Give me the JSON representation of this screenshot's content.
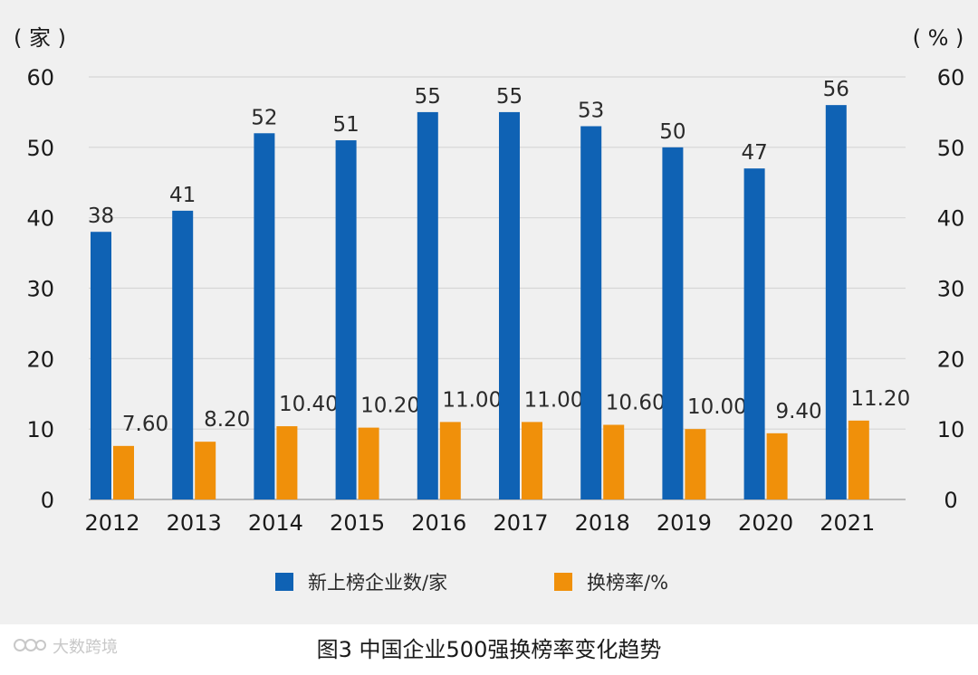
{
  "chart_data": {
    "type": "bar",
    "categories": [
      "2012",
      "2013",
      "2014",
      "2015",
      "2016",
      "2017",
      "2018",
      "2019",
      "2020",
      "2021"
    ],
    "series": [
      {
        "name": "新上榜企业数/家",
        "axis": "left",
        "color": "#0f62b4",
        "values": [
          38,
          41,
          52,
          51,
          55,
          55,
          53,
          50,
          47,
          56
        ],
        "labels": [
          "38",
          "41",
          "52",
          "51",
          "55",
          "55",
          "53",
          "50",
          "47",
          "56"
        ]
      },
      {
        "name": "换榜率/%",
        "axis": "right",
        "color": "#f0900a",
        "values": [
          7.6,
          8.2,
          10.4,
          10.2,
          11.0,
          11.0,
          10.6,
          10.0,
          9.4,
          11.2
        ],
        "labels": [
          "7.60",
          "8.20",
          "10.40",
          "10.20",
          "11.00",
          "11.00",
          "10.60",
          "10.00",
          "9.40",
          "11.20"
        ]
      }
    ],
    "left_axis": {
      "unit_label": "( 家 )",
      "ylim": [
        0,
        60
      ],
      "ticks": [
        0,
        10,
        20,
        30,
        40,
        50,
        60
      ]
    },
    "right_axis": {
      "unit_label": "( % )",
      "ylim": [
        0,
        60
      ],
      "ticks": [
        0,
        10,
        20,
        30,
        40,
        50,
        60
      ]
    },
    "grid": true,
    "legend_position": "bottom"
  },
  "caption": "图3  中国企业500强换榜率变化趋势",
  "watermark": "大数跨境"
}
